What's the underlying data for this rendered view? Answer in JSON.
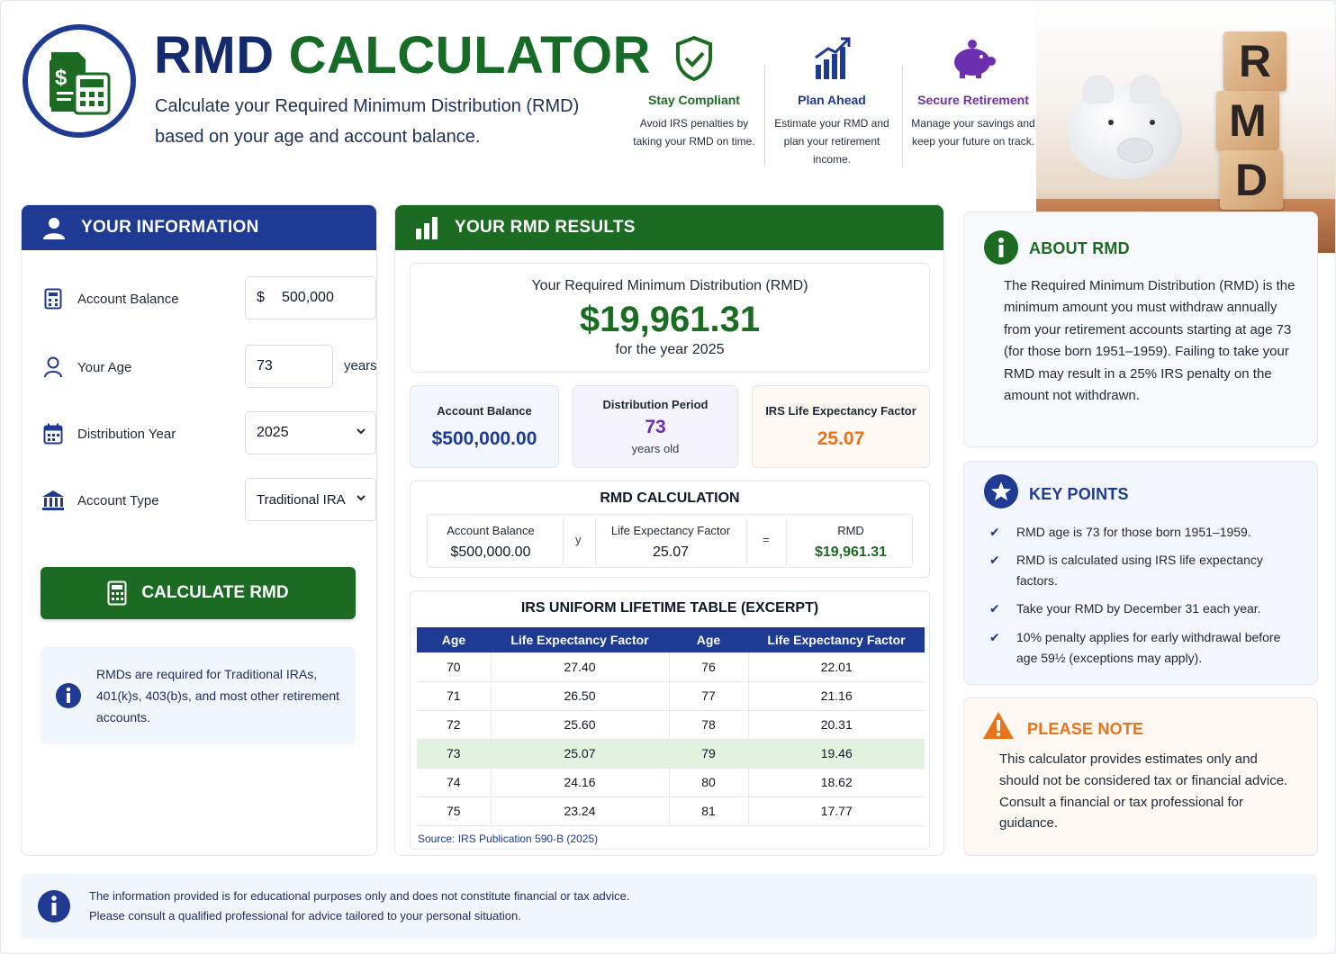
{
  "header": {
    "title_part1": "RMD",
    "title_part2": "CALCULATOR",
    "subtitle": "Calculate your Required Minimum Distribution (RMD) based on your age and account balance.",
    "features": [
      {
        "title": "Stay Compliant",
        "text": "Avoid IRS penalties by taking your RMD on time.",
        "color": "#1b6b22",
        "icon": "shield-check-icon"
      },
      {
        "title": "Plan Ahead",
        "text": "Estimate your RMD and plan your retirement income.",
        "color": "#1f3a93",
        "icon": "chart-up-icon"
      },
      {
        "title": "Secure Retirement",
        "text": "Manage your savings and keep your future on track.",
        "color": "#6b2fb0",
        "icon": "piggy-bank-icon"
      }
    ],
    "hero_blocks": [
      "R",
      "M",
      "D"
    ]
  },
  "info_panel": {
    "title": "YOUR INFORMATION",
    "fields": {
      "balance": {
        "label": "Account Balance",
        "currency": "$",
        "value": "500,000"
      },
      "age": {
        "label": "Your Age",
        "value": "73",
        "unit": "years"
      },
      "year": {
        "label": "Distribution Year",
        "value": "2025"
      },
      "type": {
        "label": "Account Type",
        "value": "Traditional IRA"
      }
    },
    "button_label": "CALCULATE RMD",
    "note": "RMDs are required for Traditional IRAs, 401(k)s, 403(b)s, and most other retirement accounts."
  },
  "results": {
    "title": "YOUR RMD RESULTS",
    "rmd_label": "Your Required Minimum Distribution (RMD)",
    "rmd_value": "$19,961.31",
    "rmd_year": "for the year 2025",
    "stats": [
      {
        "label": "Account Balance",
        "value": "$500,000.00",
        "sub": ""
      },
      {
        "label": "Distribution Period",
        "value": "73",
        "sub": "years old"
      },
      {
        "label": "IRS Life Expectancy Factor",
        "value": "25.07",
        "sub": ""
      }
    ],
    "calculation": {
      "title": "RMD CALCULATION",
      "balance_label": "Account Balance",
      "balance_value": "$500,000.00",
      "op1": "y",
      "factor_label": "Life Expectancy Factor",
      "factor_value": "25.07",
      "op2": "=",
      "rmd_label": "RMD",
      "rmd_value": "$19,961.31"
    },
    "table": {
      "title": "IRS UNIFORM LIFETIME TABLE (EXCERPT)",
      "headers": [
        "Age",
        "Life Expectancy Factor",
        "Age",
        "Life Expectancy Factor"
      ],
      "rows": [
        [
          "70",
          "27.40",
          "76",
          "22.01"
        ],
        [
          "71",
          "26.50",
          "77",
          "21.16"
        ],
        [
          "72",
          "25.60",
          "78",
          "20.31"
        ],
        [
          "73",
          "25.07",
          "79",
          "19.46"
        ],
        [
          "74",
          "24.16",
          "80",
          "18.62"
        ],
        [
          "75",
          "23.24",
          "81",
          "17.77"
        ]
      ],
      "highlight_row": 3,
      "source": "Source: IRS Publication 590-B (2025)"
    }
  },
  "about": {
    "title": "ABOUT RMD",
    "text": "The Required Minimum Distribution (RMD) is the minimum amount you must withdraw annually from your retirement accounts starting at age 73 (for those born 1951–1959). Failing to take your RMD may result in a 25% IRS penalty on the amount not withdrawn."
  },
  "key_points": {
    "title": "KEY POINTS",
    "items": [
      "RMD age is 73 for those born 1951–1959.",
      "RMD is calculated using IRS life expectancy factors.",
      "Take your RMD by December 31 each year.",
      "10% penalty applies for early withdrawal before age 59½ (exceptions may apply)."
    ]
  },
  "please_note": {
    "title": "PLEASE NOTE",
    "text": "This calculator provides estimates only and should not be considered tax or financial advice. Consult a financial or tax professional for guidance."
  },
  "footer": {
    "line1": "The information provided is for educational purposes only and does not constitute financial or tax advice.",
    "line2": "Please consult a qualified professional for advice tailored to your personal situation."
  },
  "colors": {
    "navy": "#1f3a93",
    "green": "#1b6b22",
    "purple": "#6b2fb0",
    "orange": "#e8731a"
  }
}
